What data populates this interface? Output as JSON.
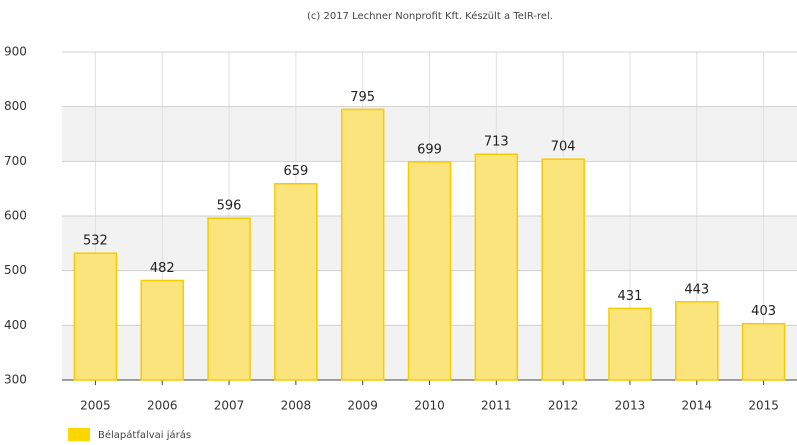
{
  "chart_data": {
    "type": "bar",
    "title": "(c) 2017 Lechner Nonprofit Kft. Készült a TeIR-rel.",
    "categories": [
      "2005",
      "2006",
      "2007",
      "2008",
      "2009",
      "2010",
      "2011",
      "2012",
      "2013",
      "2014",
      "2015"
    ],
    "series": [
      {
        "name": "Bélapátfalvai járás",
        "color": "#fce47c",
        "values": [
          532,
          482,
          596,
          659,
          795,
          699,
          713,
          704,
          431,
          443,
          403
        ]
      }
    ],
    "ylim": [
      300,
      900
    ],
    "yticks": [
      300,
      400,
      500,
      600,
      700,
      800,
      900
    ],
    "grid": true
  }
}
